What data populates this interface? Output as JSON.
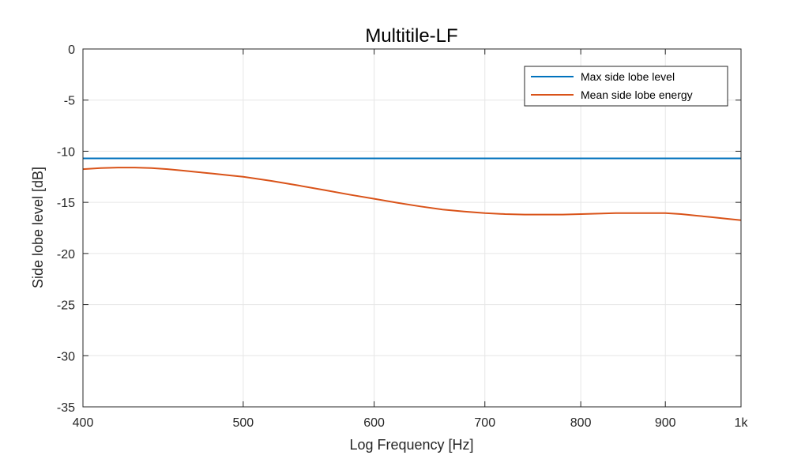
{
  "chart_data": {
    "type": "line",
    "title": "Multitile-LF",
    "xlabel": "Log Frequency [Hz]",
    "ylabel": "Side lobe level [dB]",
    "xscale": "log",
    "xlim": [
      400,
      1000
    ],
    "ylim": [
      -35,
      0
    ],
    "grid": true,
    "legend_position": "top-right",
    "x_ticks": [
      {
        "value": 400,
        "label": "400"
      },
      {
        "value": 500,
        "label": "500"
      },
      {
        "value": 600,
        "label": "600"
      },
      {
        "value": 700,
        "label": "700"
      },
      {
        "value": 800,
        "label": "800"
      },
      {
        "value": 900,
        "label": "900"
      },
      {
        "value": 1000,
        "label": "1k"
      }
    ],
    "y_ticks": [
      {
        "value": 0,
        "label": "0"
      },
      {
        "value": -5,
        "label": "-5"
      },
      {
        "value": -10,
        "label": "-10"
      },
      {
        "value": -15,
        "label": "-15"
      },
      {
        "value": -20,
        "label": "-20"
      },
      {
        "value": -25,
        "label": "-25"
      },
      {
        "value": -30,
        "label": "-30"
      },
      {
        "value": -35,
        "label": "-35"
      }
    ],
    "series": [
      {
        "name": "Max side lobe level",
        "color": "#0072BD",
        "x": [
          400,
          1000
        ],
        "y": [
          -10.7,
          -10.7
        ]
      },
      {
        "name": "Mean side lobe energy",
        "color": "#D95319",
        "x": [
          400,
          410,
          420,
          430,
          440,
          450,
          460,
          470,
          480,
          490,
          500,
          520,
          540,
          560,
          580,
          600,
          620,
          640,
          660,
          680,
          700,
          720,
          740,
          760,
          780,
          800,
          820,
          840,
          860,
          880,
          900,
          920,
          940,
          960,
          980,
          1000
        ],
        "y": [
          -11.75,
          -11.65,
          -11.6,
          -11.6,
          -11.65,
          -11.75,
          -11.9,
          -12.05,
          -12.2,
          -12.35,
          -12.5,
          -12.9,
          -13.35,
          -13.8,
          -14.25,
          -14.65,
          -15.05,
          -15.4,
          -15.7,
          -15.9,
          -16.05,
          -16.15,
          -16.2,
          -16.2,
          -16.2,
          -16.15,
          -16.1,
          -16.05,
          -16.05,
          -16.05,
          -16.05,
          -16.15,
          -16.3,
          -16.45,
          -16.6,
          -16.75
        ]
      }
    ]
  }
}
